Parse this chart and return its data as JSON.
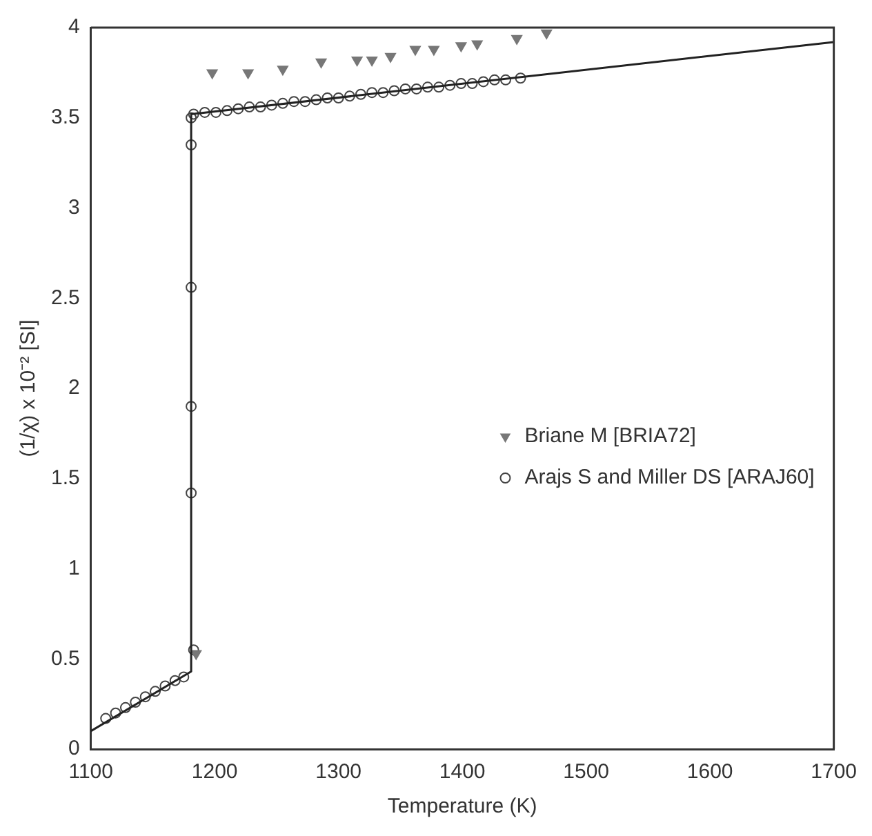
{
  "chart_data": {
    "type": "scatter",
    "xlabel": "Temperature (K)",
    "ylabel": "(1/χ) x 10⁻² [SI]",
    "xlim": [
      1100,
      1700
    ],
    "xticks": [
      1100,
      1200,
      1300,
      1400,
      1500,
      1600,
      1700
    ],
    "ylim": [
      0,
      4
    ],
    "yticks": [
      0,
      0.5,
      1,
      1.5,
      2,
      2.5,
      3,
      3.5,
      4
    ],
    "grid": false,
    "legend": "right",
    "series": [
      {
        "type": "line",
        "color": "#222222",
        "marker": "none",
        "line_style": "solid",
        "x": [
          1100,
          1181,
          1181,
          1700
        ],
        "values": [
          0.1,
          0.43,
          3.52,
          3.92
        ]
      },
      {
        "name": "Briane M [BRIA72]",
        "color": "#777777",
        "marker": "triangle",
        "x": [
          1185,
          1198,
          1227,
          1255,
          1286,
          1315,
          1327,
          1342,
          1362,
          1377,
          1399,
          1412,
          1444,
          1468
        ],
        "values": [
          0.53,
          3.75,
          3.75,
          3.77,
          3.81,
          3.82,
          3.82,
          3.84,
          3.88,
          3.88,
          3.9,
          3.91,
          3.94,
          3.97
        ]
      },
      {
        "name": "Arajs S and Miller DS [ARAJ60]",
        "color": "#444444",
        "marker": "circle",
        "x": [
          1112,
          1120,
          1128,
          1136,
          1144,
          1152,
          1160,
          1168,
          1175,
          1183,
          1181,
          1181,
          1181,
          1181,
          1181,
          1183,
          1192,
          1201,
          1210,
          1219,
          1228,
          1237,
          1246,
          1255,
          1264,
          1273,
          1282,
          1291,
          1300,
          1309,
          1318,
          1327,
          1336,
          1345,
          1354,
          1363,
          1372,
          1381,
          1390,
          1399,
          1408,
          1417,
          1426,
          1435,
          1447
        ],
        "values": [
          0.17,
          0.2,
          0.23,
          0.26,
          0.29,
          0.32,
          0.35,
          0.38,
          0.4,
          0.55,
          1.42,
          1.9,
          2.56,
          3.35,
          3.5,
          3.52,
          3.53,
          3.53,
          3.54,
          3.55,
          3.56,
          3.56,
          3.57,
          3.58,
          3.59,
          3.59,
          3.6,
          3.61,
          3.61,
          3.62,
          3.63,
          3.64,
          3.64,
          3.65,
          3.66,
          3.66,
          3.67,
          3.67,
          3.68,
          3.69,
          3.69,
          3.7,
          3.71,
          3.71,
          3.72
        ]
      }
    ]
  }
}
